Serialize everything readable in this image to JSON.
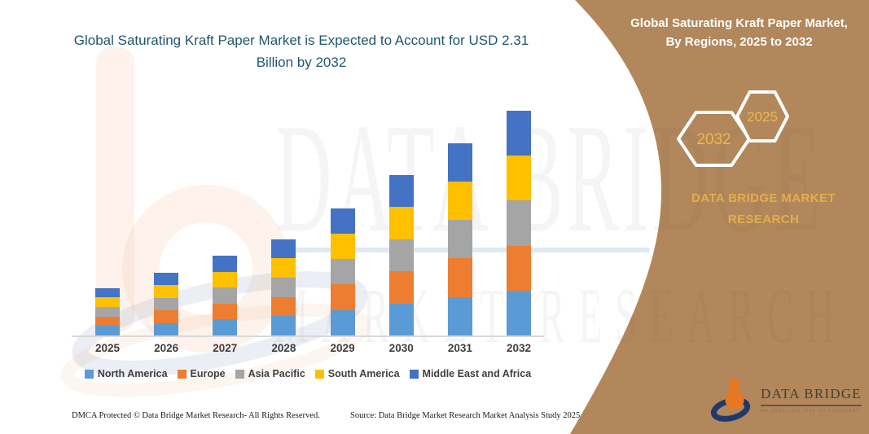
{
  "page": {
    "left_title": "Global Saturating Kraft Paper Market is Expected to Account for USD 2.31 Billion by 2032",
    "footer": {
      "dmca": "DMCA Protected © Data Bridge Market Research-  All Rights Reserved.",
      "source": "Source: Data Bridge Market Research  Market Analysis Study 2025"
    }
  },
  "right_panel": {
    "title": "Global Saturating Kraft Paper Market, By Regions, 2025 to 2032",
    "hexagons": [
      {
        "label": "2032"
      },
      {
        "label": "2025"
      }
    ],
    "brand_text": "DATA BRIDGE MARKET RESEARCH",
    "background_color": "#B2875B",
    "accent_gold": "#E2AE4C"
  },
  "logo": {
    "name": "DATA BRIDGE",
    "tagline": "AN ABSOLUTE WAY TO FORECAST"
  },
  "watermark": {
    "line1": "DATA BRIDGE",
    "line2": "MARKET RESEARCH"
  },
  "chart_data": {
    "type": "bar",
    "subtype": "stacked",
    "title": "Global Saturating Kraft Paper Market, By Regions, 2025 to 2032",
    "unit": "USD Billion",
    "categories": [
      "2025",
      "2026",
      "2027",
      "2028",
      "2029",
      "2030",
      "2031",
      "2032"
    ],
    "totals": [
      0.49,
      0.65,
      0.82,
      0.99,
      1.31,
      1.65,
      1.98,
      2.31
    ],
    "series": [
      {
        "name": "North America",
        "color": "#5B9BD5",
        "values": [
          0.098,
          0.13,
          0.164,
          0.198,
          0.262,
          0.33,
          0.396,
          0.462
        ]
      },
      {
        "name": "Europe",
        "color": "#ED7D31",
        "values": [
          0.098,
          0.13,
          0.164,
          0.198,
          0.262,
          0.33,
          0.396,
          0.462
        ]
      },
      {
        "name": "Asia Pacific",
        "color": "#A5A5A5",
        "values": [
          0.098,
          0.13,
          0.164,
          0.198,
          0.262,
          0.33,
          0.396,
          0.462
        ]
      },
      {
        "name": "South America",
        "color": "#FFC000",
        "values": [
          0.098,
          0.13,
          0.164,
          0.198,
          0.262,
          0.33,
          0.396,
          0.462
        ]
      },
      {
        "name": "Middle East and Africa",
        "color": "#4472C4",
        "values": [
          0.098,
          0.13,
          0.164,
          0.198,
          0.262,
          0.33,
          0.396,
          0.462
        ]
      }
    ],
    "xlabel": "",
    "ylabel": "",
    "ylim": [
      0,
      2.5
    ],
    "gridlines": false,
    "y_axis_visible": false,
    "legend_position": "bottom"
  }
}
